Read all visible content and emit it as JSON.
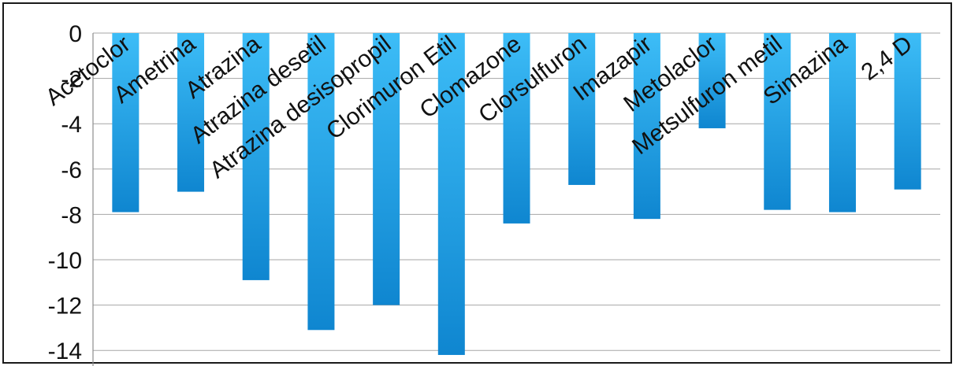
{
  "chart_data": {
    "type": "bar",
    "categories": [
      "Acetoclor",
      "Ametrina",
      "Atrazina",
      "Atrazina desetil",
      "Atrazina desisopropil",
      "Clorimuron Etil",
      "Clomazone",
      "Clorsulfuron",
      "Imazapir",
      "Metolaclor",
      "Metsulfuron metil",
      "Simazina",
      "2,4 D"
    ],
    "values": [
      -7.9,
      -7.0,
      -10.9,
      -13.1,
      -12.0,
      -14.2,
      -8.4,
      -6.7,
      -8.2,
      -4.2,
      -7.8,
      -7.9,
      -6.9
    ],
    "ylim": [
      -14.5,
      0
    ],
    "yticks": [
      "0",
      "-2",
      "-4",
      "-6",
      "-8",
      "-10",
      "-12",
      "-14"
    ],
    "grid": true,
    "bar_color": "#1ea7ea",
    "bar_color_dark": "#0f86d0",
    "bar_color_light": "#3dbdf7"
  }
}
